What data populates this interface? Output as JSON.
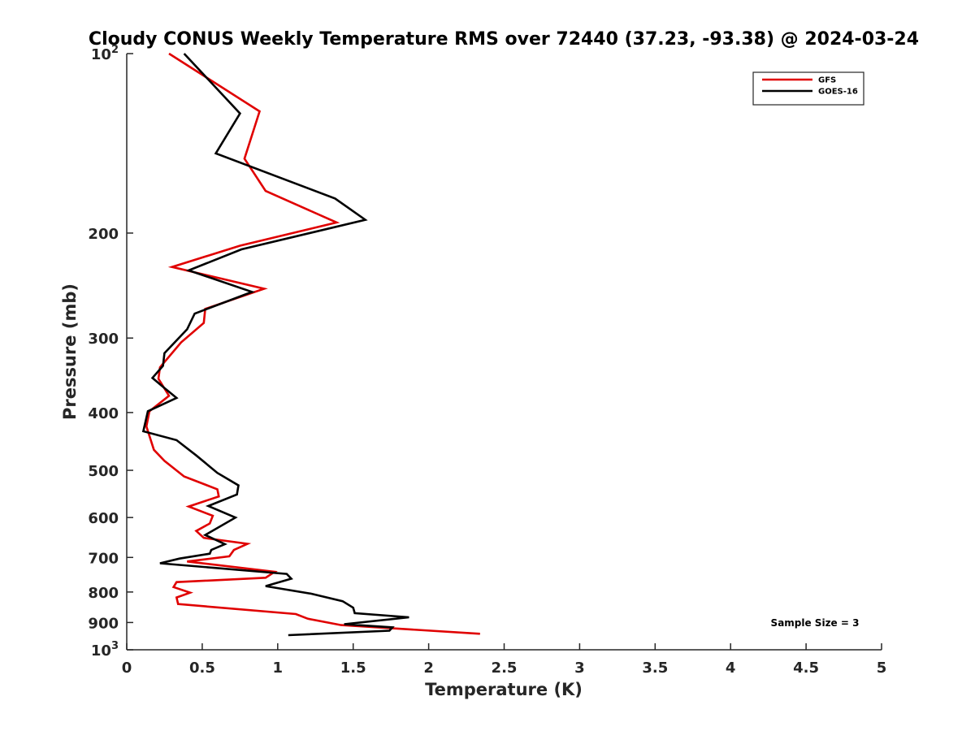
{
  "chart_data": {
    "type": "line",
    "title": "Cloudy CONUS Weekly Temperature RMS over 72440 (37.23, -93.38) @ 2024-03-24",
    "xlabel": "Temperature (K)",
    "ylabel": "Pressure (mb)",
    "xlim": [
      0,
      5
    ],
    "ylim": [
      100,
      1000
    ],
    "y_scale": "log",
    "y_reversed": true,
    "x_ticks": [
      "0",
      "0.5",
      "1",
      "1.5",
      "2",
      "2.5",
      "3",
      "3.5",
      "4",
      "4.5",
      "5"
    ],
    "y_ticks": [
      {
        "value": 100,
        "label": "10",
        "sup": "2"
      },
      {
        "value": 200,
        "label": "200",
        "sup": ""
      },
      {
        "value": 300,
        "label": "300",
        "sup": ""
      },
      {
        "value": 400,
        "label": "400",
        "sup": ""
      },
      {
        "value": 500,
        "label": "500",
        "sup": ""
      },
      {
        "value": 600,
        "label": "600",
        "sup": ""
      },
      {
        "value": 700,
        "label": "700",
        "sup": ""
      },
      {
        "value": 800,
        "label": "800",
        "sup": ""
      },
      {
        "value": 900,
        "label": "900",
        "sup": ""
      },
      {
        "value": 1000,
        "label": "10",
        "sup": "3"
      }
    ],
    "grid": false,
    "legend_position": "top-right",
    "annotation": "Sample Size = 3",
    "series": [
      {
        "name": "GFS",
        "color": "#e00000",
        "points": [
          [
            0.28,
            100
          ],
          [
            0.88,
            125
          ],
          [
            0.78,
            150
          ],
          [
            0.92,
            170
          ],
          [
            1.39,
            192
          ],
          [
            0.75,
            210
          ],
          [
            0.3,
            228
          ],
          [
            0.91,
            248
          ],
          [
            0.52,
            268
          ],
          [
            0.51,
            283
          ],
          [
            0.36,
            305
          ],
          [
            0.22,
            336
          ],
          [
            0.21,
            351
          ],
          [
            0.28,
            375
          ],
          [
            0.15,
            398
          ],
          [
            0.13,
            422
          ],
          [
            0.18,
            462
          ],
          [
            0.25,
            482
          ],
          [
            0.38,
            512
          ],
          [
            0.6,
            538
          ],
          [
            0.61,
            553
          ],
          [
            0.41,
            575
          ],
          [
            0.57,
            596
          ],
          [
            0.55,
            614
          ],
          [
            0.46,
            632
          ],
          [
            0.51,
            649
          ],
          [
            0.8,
            664
          ],
          [
            0.71,
            680
          ],
          [
            0.68,
            697
          ],
          [
            0.4,
            711
          ],
          [
            0.98,
            740
          ],
          [
            0.92,
            757
          ],
          [
            0.33,
            770
          ],
          [
            0.31,
            785
          ],
          [
            0.42,
            802
          ],
          [
            0.33,
            817
          ],
          [
            0.34,
            838
          ],
          [
            1.12,
            871
          ],
          [
            1.2,
            887
          ],
          [
            1.42,
            909
          ],
          [
            2.34,
            940
          ]
        ]
      },
      {
        "name": "GOES-16",
        "color": "#000000",
        "points": [
          [
            0.38,
            100
          ],
          [
            0.75,
            126
          ],
          [
            0.59,
            147
          ],
          [
            1.38,
            175
          ],
          [
            1.58,
            190
          ],
          [
            0.76,
            213
          ],
          [
            0.41,
            231
          ],
          [
            0.83,
            251
          ],
          [
            0.45,
            273
          ],
          [
            0.4,
            290
          ],
          [
            0.25,
            318
          ],
          [
            0.24,
            334
          ],
          [
            0.17,
            350
          ],
          [
            0.25,
            364
          ],
          [
            0.33,
            378
          ],
          [
            0.14,
            398
          ],
          [
            0.11,
            430
          ],
          [
            0.33,
            445
          ],
          [
            0.46,
            472
          ],
          [
            0.6,
            505
          ],
          [
            0.74,
            530
          ],
          [
            0.73,
            549
          ],
          [
            0.54,
            574
          ],
          [
            0.72,
            600
          ],
          [
            0.52,
            642
          ],
          [
            0.65,
            665
          ],
          [
            0.56,
            680
          ],
          [
            0.55,
            690
          ],
          [
            0.35,
            703
          ],
          [
            0.22,
            716
          ],
          [
            1.06,
            746
          ],
          [
            1.09,
            760
          ],
          [
            0.92,
            782
          ],
          [
            1.22,
            805
          ],
          [
            1.43,
            829
          ],
          [
            1.5,
            850
          ],
          [
            1.51,
            868
          ],
          [
            1.87,
            882
          ],
          [
            1.44,
            906
          ],
          [
            1.76,
            917
          ],
          [
            1.74,
            929
          ],
          [
            1.07,
            945
          ]
        ]
      }
    ]
  }
}
